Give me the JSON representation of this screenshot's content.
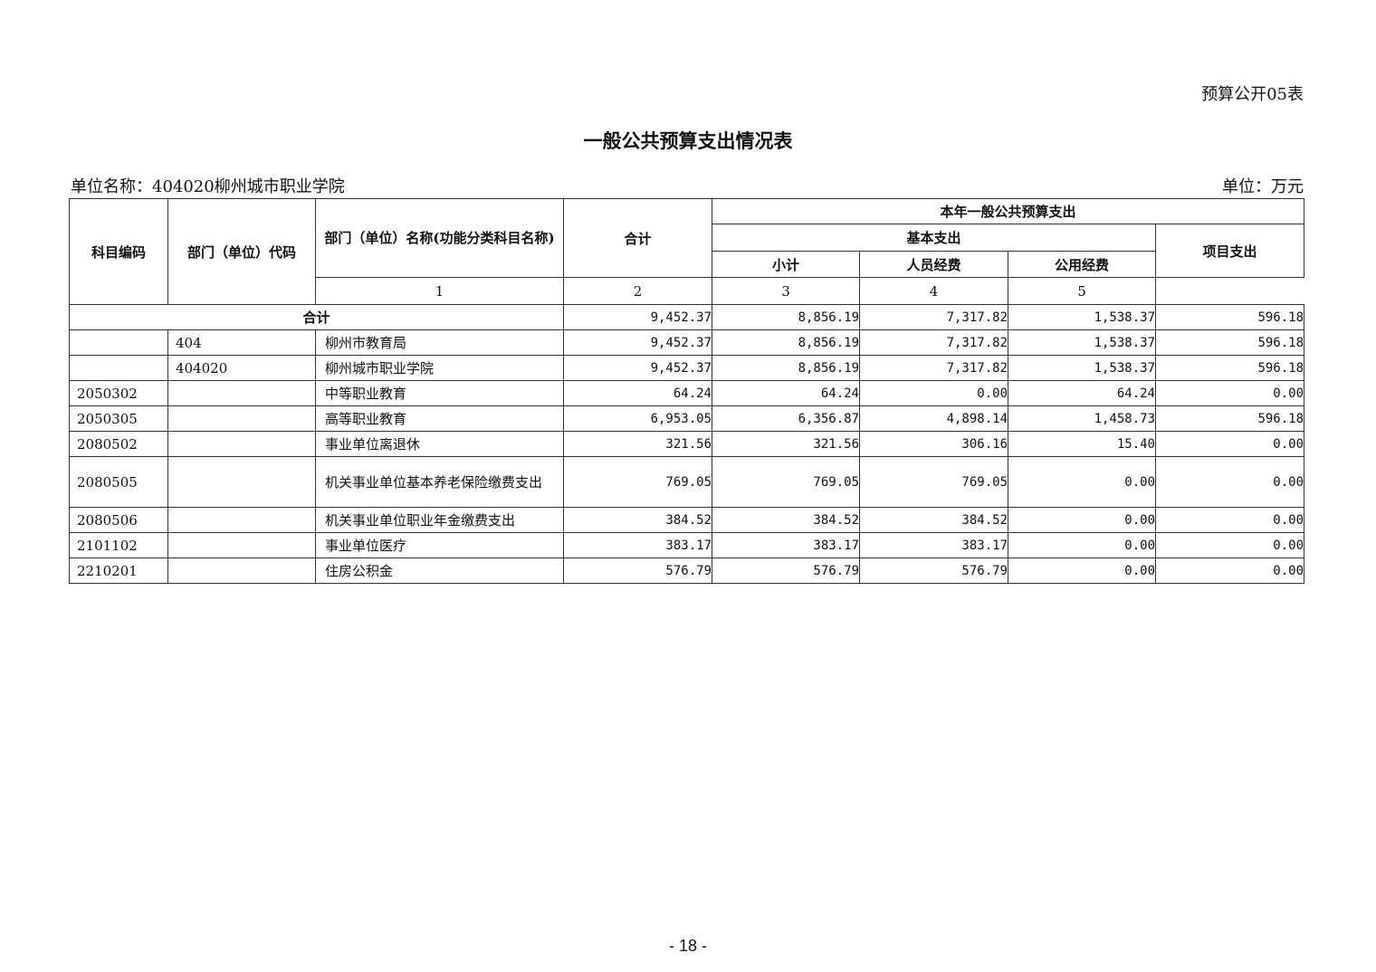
{
  "form_no": "预算公开05表",
  "title": "一般公共预算支出情况表",
  "unit_name": "单位名称：404020柳州城市职业学院",
  "unit": "单位：万元",
  "headers": {
    "subject_code": "科目编码",
    "dept_code": "部门（单位）代码",
    "dept_name": "部门（单位）名称(功能分类科目名称)",
    "total": "合计",
    "current_year": "本年一般公共预算支出",
    "basic": "基本支出",
    "subtotal": "小计",
    "personnel": "人员经费",
    "public": "公用经费",
    "project": "项目支出",
    "idx1": "1",
    "idx2": "2",
    "idx3": "3",
    "idx4": "4",
    "idx5": "5"
  },
  "total_row": {
    "label": "合计",
    "values": [
      "9,452.37",
      "8,856.19",
      "7,317.82",
      "1,538.37",
      "596.18"
    ]
  },
  "rows": [
    {
      "code": "",
      "dept": "404",
      "name": "柳州市教育局",
      "values": [
        "9,452.37",
        "8,856.19",
        "7,317.82",
        "1,538.37",
        "596.18"
      ]
    },
    {
      "code": "",
      "dept": "404020",
      "name": "柳州城市职业学院",
      "values": [
        "9,452.37",
        "8,856.19",
        "7,317.82",
        "1,538.37",
        "596.18"
      ]
    },
    {
      "code": "2050302",
      "dept": "",
      "name": "中等职业教育",
      "values": [
        "64.24",
        "64.24",
        "0.00",
        "64.24",
        "0.00"
      ]
    },
    {
      "code": "2050305",
      "dept": "",
      "name": "高等职业教育",
      "values": [
        "6,953.05",
        "6,356.87",
        "4,898.14",
        "1,458.73",
        "596.18"
      ]
    },
    {
      "code": "2080502",
      "dept": "",
      "name": "事业单位离退休",
      "values": [
        "321.56",
        "321.56",
        "306.16",
        "15.40",
        "0.00"
      ]
    },
    {
      "code": "2080505",
      "dept": "",
      "name": "机关事业单位基本养老保险缴费支出",
      "values": [
        "769.05",
        "769.05",
        "769.05",
        "0.00",
        "0.00"
      ]
    },
    {
      "code": "2080506",
      "dept": "",
      "name": "机关事业单位职业年金缴费支出",
      "values": [
        "384.52",
        "384.52",
        "384.52",
        "0.00",
        "0.00"
      ]
    },
    {
      "code": "2101102",
      "dept": "",
      "name": "事业单位医疗",
      "values": [
        "383.17",
        "383.17",
        "383.17",
        "0.00",
        "0.00"
      ]
    },
    {
      "code": "2210201",
      "dept": "",
      "name": "住房公积金",
      "values": [
        "576.79",
        "576.79",
        "576.79",
        "0.00",
        "0.00"
      ]
    }
  ],
  "page_number": "- 18 -"
}
